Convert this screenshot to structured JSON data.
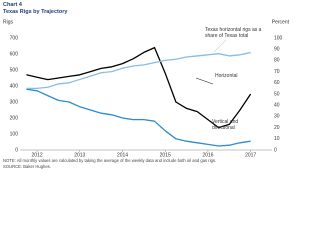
{
  "chart_data": {
    "type": "line",
    "chart_label": "Chart 4",
    "title": "Texas Rigs by Trajectory",
    "y_label": "Rigs",
    "y2_label": "Percent",
    "note": "NOTE: All monthly values are calculated by taking the average of the weekly data and include both oil and gas rigs.",
    "source": "SOURCE: Baker Hughes.",
    "x": [
      2011.75,
      2012.0,
      2012.25,
      2012.5,
      2012.75,
      2013.0,
      2013.25,
      2013.5,
      2013.75,
      2014.0,
      2014.25,
      2014.5,
      2014.75,
      2015.0,
      2015.25,
      2015.5,
      2015.75,
      2016.0,
      2016.25,
      2016.5,
      2016.75,
      2017.0
    ],
    "series": [
      {
        "name": "Horizontal",
        "color": "#000000",
        "values": [
          470,
          455,
          440,
          450,
          460,
          470,
          490,
          510,
          520,
          540,
          570,
          610,
          640,
          480,
          300,
          260,
          240,
          190,
          140,
          160,
          250,
          350
        ]
      },
      {
        "name": "Vertical and directional",
        "color": "#2b8ccf",
        "values": [
          380,
          370,
          340,
          310,
          300,
          270,
          250,
          230,
          220,
          200,
          190,
          190,
          180,
          120,
          70,
          55,
          45,
          35,
          25,
          30,
          45,
          55
        ]
      },
      {
        "name": "Texas horizontal rigs as a share of Texas total",
        "color": "#86bde6",
        "axis": "y2",
        "values": [
          55,
          55,
          56,
          59,
          60,
          63,
          66,
          69,
          70,
          73,
          75,
          76,
          78,
          80,
          81,
          83,
          84,
          85,
          86,
          84,
          85,
          87
        ]
      }
    ],
    "xlim": [
      2011.6,
      2017.5
    ],
    "xticks": [
      2012,
      2013,
      2014,
      2015,
      2016,
      2017
    ],
    "ylim": [
      0,
      700
    ],
    "yticks": [
      0,
      100,
      200,
      300,
      400,
      500,
      600,
      700
    ],
    "y2lim": [
      0,
      100
    ],
    "y2ticks": [
      0,
      10,
      20,
      30,
      40,
      50,
      60,
      70,
      80,
      90,
      100
    ],
    "grid": false
  }
}
